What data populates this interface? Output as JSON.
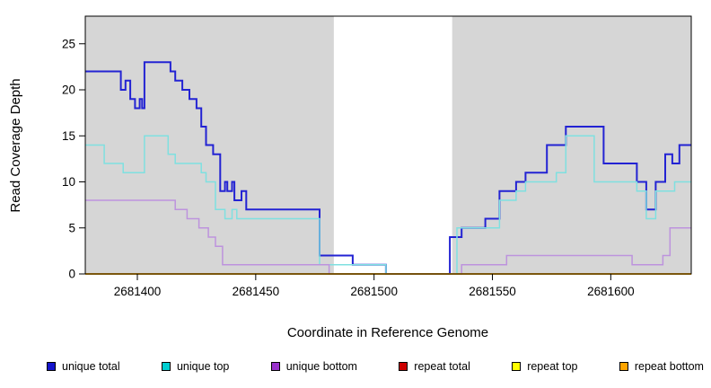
{
  "chart_data": {
    "type": "line",
    "subtype": "step-coverage",
    "title": "",
    "xlabel": "Coordinate in Reference Genome",
    "ylabel": "Read Coverage Depth",
    "xlim": [
      2681378,
      2681634
    ],
    "ylim": [
      0,
      28
    ],
    "x_ticks": [
      2681400,
      2681450,
      2681500,
      2681550,
      2681600
    ],
    "y_ticks": [
      0,
      5,
      10,
      15,
      20,
      25
    ],
    "grid": false,
    "legend_position": "bottom",
    "plot_bg_color": "#D6D6D6",
    "border_color": "#000000",
    "highlight_region": {
      "x_start": 2681483,
      "x_end": 2681533,
      "color": "#FFFFFF"
    },
    "series": [
      {
        "name": "unique total",
        "color": "#2323D3",
        "legend_color": "#1414CC",
        "width": 2,
        "points": [
          [
            2681378,
            22
          ],
          [
            2681393,
            20
          ],
          [
            2681395,
            21
          ],
          [
            2681397,
            19
          ],
          [
            2681399,
            18
          ],
          [
            2681401,
            19
          ],
          [
            2681402,
            18
          ],
          [
            2681403,
            23
          ],
          [
            2681414,
            22
          ],
          [
            2681416,
            21
          ],
          [
            2681419,
            20
          ],
          [
            2681422,
            19
          ],
          [
            2681425,
            18
          ],
          [
            2681427,
            16
          ],
          [
            2681429,
            14
          ],
          [
            2681432,
            13
          ],
          [
            2681435,
            9
          ],
          [
            2681437,
            10
          ],
          [
            2681438,
            9
          ],
          [
            2681440,
            10
          ],
          [
            2681441,
            8
          ],
          [
            2681444,
            9
          ],
          [
            2681446,
            7
          ],
          [
            2681477,
            2
          ],
          [
            2681491,
            1
          ],
          [
            2681505,
            0
          ],
          [
            2681532,
            4
          ],
          [
            2681537,
            5
          ],
          [
            2681547,
            6
          ],
          [
            2681553,
            9
          ],
          [
            2681560,
            10
          ],
          [
            2681564,
            11
          ],
          [
            2681573,
            14
          ],
          [
            2681581,
            16
          ],
          [
            2681597,
            12
          ],
          [
            2681611,
            10
          ],
          [
            2681615,
            7
          ],
          [
            2681619,
            10
          ],
          [
            2681623,
            13
          ],
          [
            2681626,
            12
          ],
          [
            2681629,
            14
          ]
        ]
      },
      {
        "name": "unique top",
        "color": "#7FE0E0",
        "legend_color": "#00CED1",
        "width": 1.5,
        "points": [
          [
            2681378,
            14
          ],
          [
            2681386,
            12
          ],
          [
            2681394,
            11
          ],
          [
            2681403,
            15
          ],
          [
            2681413,
            13
          ],
          [
            2681416,
            12
          ],
          [
            2681427,
            11
          ],
          [
            2681429,
            10
          ],
          [
            2681433,
            7
          ],
          [
            2681437,
            6
          ],
          [
            2681440,
            7
          ],
          [
            2681442,
            6
          ],
          [
            2681477,
            1
          ],
          [
            2681505,
            0
          ],
          [
            2681535,
            5
          ],
          [
            2681553,
            8
          ],
          [
            2681560,
            9
          ],
          [
            2681564,
            10
          ],
          [
            2681577,
            11
          ],
          [
            2681581,
            15
          ],
          [
            2681593,
            10
          ],
          [
            2681611,
            9
          ],
          [
            2681615,
            6
          ],
          [
            2681619,
            9
          ],
          [
            2681627,
            10
          ]
        ]
      },
      {
        "name": "unique bottom",
        "color": "#BD93DD",
        "legend_color": "#9932CC",
        "width": 1.5,
        "points": [
          [
            2681378,
            8
          ],
          [
            2681416,
            7
          ],
          [
            2681421,
            6
          ],
          [
            2681426,
            5
          ],
          [
            2681430,
            4
          ],
          [
            2681433,
            3
          ],
          [
            2681436,
            1
          ],
          [
            2681481,
            0
          ],
          [
            2681537,
            1
          ],
          [
            2681556,
            2
          ],
          [
            2681609,
            1
          ],
          [
            2681622,
            2
          ],
          [
            2681625,
            5
          ]
        ]
      },
      {
        "name": "repeat total",
        "color": "#CC0000",
        "legend_color": "#CC0000",
        "width": 1.5,
        "points": [
          [
            2681378,
            0
          ]
        ]
      },
      {
        "name": "repeat top",
        "color": "#FFFF00",
        "legend_color": "#FFFF00",
        "width": 1.5,
        "points": [
          [
            2681378,
            0
          ]
        ]
      },
      {
        "name": "repeat bottom",
        "color": "#FFA500",
        "legend_color": "#FFA500",
        "width": 1.5,
        "points": [
          [
            2681378,
            0
          ]
        ]
      }
    ]
  }
}
